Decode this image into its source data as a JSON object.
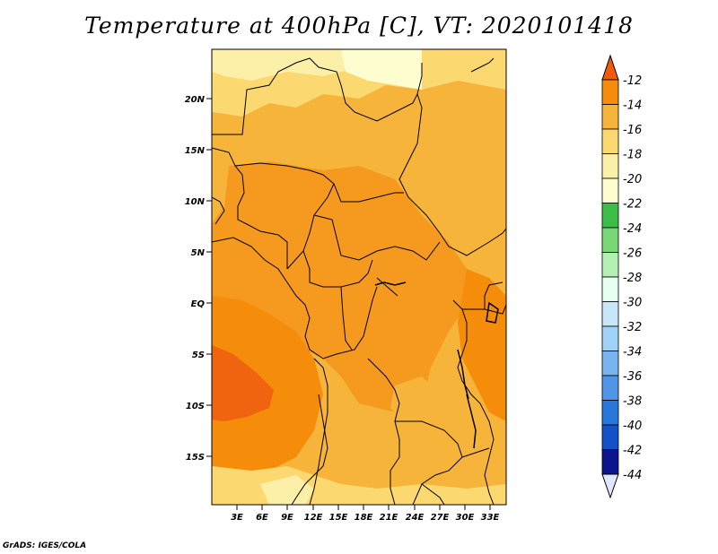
{
  "title": "Temperature at 400hPa [C], VT: 2020101418",
  "credit": "GrADS: IGES/COLA",
  "lat_labels": [
    "20N",
    "15N",
    "10N",
    "5N",
    "EQ",
    "5S",
    "10S",
    "15S"
  ],
  "lon_labels": [
    "3E",
    "6E",
    "9E",
    "12E",
    "15E",
    "18E",
    "21E",
    "24E",
    "27E",
    "30E",
    "33E"
  ],
  "colorbar": {
    "labels": [
      "-12",
      "-14",
      "-16",
      "-18",
      "-20",
      "-22",
      "-24",
      "-26",
      "-28",
      "-30",
      "-32",
      "-34",
      "-36",
      "-38",
      "-40",
      "-42",
      "-44"
    ],
    "colors": [
      "#f05a0a",
      "#f58c0a",
      "#f7b43a",
      "#fbd870",
      "#fcf0a8",
      "#fdfdd0",
      "#3cbe46",
      "#78d878",
      "#b4f0b4",
      "#e6fff0",
      "#c8e6fa",
      "#a0d2f8",
      "#78b4f0",
      "#5096e8",
      "#2878dc",
      "#1450c8",
      "#0a148c",
      "#e0e6ff"
    ]
  },
  "chart_data": {
    "type": "heatmap",
    "title": "Temperature at 400hPa [C], VT: 2020101418",
    "variable": "Temperature",
    "units": "C",
    "level": "400hPa",
    "valid_time": "2020101418",
    "x_ticks": [
      "3E",
      "6E",
      "9E",
      "12E",
      "15E",
      "18E",
      "21E",
      "24E",
      "27E",
      "30E",
      "33E"
    ],
    "y_ticks": [
      "20N",
      "15N",
      "10N",
      "5N",
      "EQ",
      "5S",
      "10S",
      "15S"
    ],
    "lon_range": [
      0,
      34.5
    ],
    "lat_range": [
      -19.5,
      24.5
    ],
    "contour_levels": [
      -44,
      -42,
      -40,
      -38,
      -36,
      -34,
      -32,
      -30,
      -28,
      -26,
      -24,
      -22,
      -20,
      -18,
      -16,
      -14,
      -12
    ]
  }
}
